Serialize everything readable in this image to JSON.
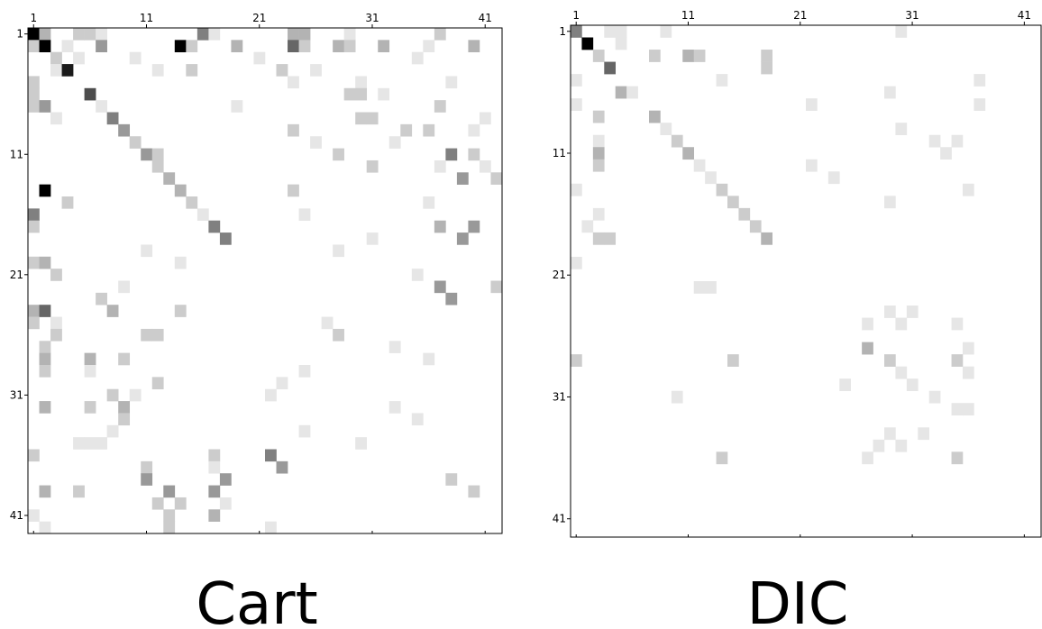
{
  "chart_data": [
    {
      "type": "heatmap",
      "title": "Cart",
      "color": "#000000",
      "x": [
        1,
        2,
        5,
        6,
        7,
        16,
        17,
        24,
        25,
        29,
        37,
        1,
        2,
        4,
        7,
        14,
        15,
        19,
        24,
        25,
        28,
        29,
        32,
        36,
        40,
        3,
        5,
        10,
        21,
        35,
        3,
        4,
        12,
        15,
        23,
        26,
        1,
        24,
        30,
        38,
        1,
        6,
        29,
        30,
        32,
        1,
        2,
        7,
        19,
        37,
        3,
        8,
        30,
        31,
        41,
        9,
        24,
        34,
        36,
        40,
        10,
        26,
        33,
        11,
        12,
        28,
        38,
        40,
        12,
        31,
        37,
        41,
        13,
        39,
        42,
        2,
        14,
        24,
        4,
        15,
        36,
        1,
        16,
        25,
        1,
        17,
        37,
        40,
        18,
        31,
        39,
        11,
        28,
        1,
        2,
        14,
        3,
        35,
        9,
        37,
        42,
        7,
        38,
        1,
        2,
        8,
        14,
        1,
        3,
        27,
        3,
        11,
        12,
        28,
        2,
        33,
        2,
        6,
        9,
        36,
        2,
        6,
        25,
        12,
        23,
        8,
        10,
        22,
        2,
        6,
        9,
        33,
        9,
        35,
        8,
        25,
        5,
        6,
        7,
        30,
        1,
        17,
        22,
        11,
        17,
        23,
        11,
        18,
        38,
        2,
        5,
        13,
        17,
        40,
        12,
        14,
        18,
        1,
        13,
        17,
        2,
        13,
        22
      ],
      "y": [
        1,
        1,
        1,
        1,
        1,
        1,
        1,
        1,
        1,
        1,
        1,
        2,
        2,
        2,
        2,
        2,
        2,
        2,
        2,
        2,
        2,
        2,
        2,
        2,
        2,
        3,
        3,
        3,
        3,
        3,
        4,
        4,
        4,
        4,
        4,
        4,
        5,
        5,
        5,
        5,
        6,
        6,
        6,
        6,
        6,
        7,
        7,
        7,
        7,
        7,
        8,
        8,
        8,
        8,
        8,
        9,
        9,
        9,
        9,
        9,
        10,
        10,
        10,
        11,
        11,
        11,
        11,
        11,
        12,
        12,
        12,
        12,
        13,
        13,
        13,
        14,
        14,
        14,
        15,
        15,
        15,
        16,
        16,
        16,
        17,
        17,
        17,
        17,
        18,
        18,
        18,
        19,
        19,
        20,
        20,
        20,
        21,
        21,
        22,
        22,
        22,
        23,
        23,
        24,
        24,
        24,
        24,
        25,
        25,
        25,
        26,
        26,
        26,
        26,
        27,
        27,
        28,
        28,
        28,
        28,
        29,
        29,
        29,
        30,
        30,
        31,
        31,
        31,
        32,
        32,
        32,
        32,
        33,
        33,
        34,
        34,
        35,
        35,
        35,
        35,
        36,
        36,
        36,
        37,
        37,
        37,
        38,
        38,
        38,
        39,
        39,
        39,
        39,
        39,
        40,
        40,
        40,
        41,
        41,
        41,
        42,
        42,
        42
      ],
      "values": [
        1,
        0.3,
        0.2,
        0.2,
        0.1,
        0.5,
        0.1,
        0.3,
        0.3,
        0.1,
        0.2,
        0.2,
        1,
        0.1,
        0.4,
        1,
        0.2,
        0.3,
        0.6,
        0.2,
        0.3,
        0.2,
        0.3,
        0.1,
        0.3,
        0.2,
        0.1,
        0.1,
        0.1,
        0.1,
        0.1,
        0.9,
        0.1,
        0.2,
        0.2,
        0.1,
        0.2,
        0.1,
        0.1,
        0.1,
        0.2,
        0.7,
        0.2,
        0.2,
        0.1,
        0.2,
        0.4,
        0.1,
        0.1,
        0.2,
        0.1,
        0.5,
        0.2,
        0.2,
        0.1,
        0.4,
        0.2,
        0.2,
        0.2,
        0.1,
        0.2,
        0.1,
        0.1,
        0.4,
        0.2,
        0.2,
        0.5,
        0.2,
        0.2,
        0.2,
        0.1,
        0.1,
        0.3,
        0.4,
        0.2,
        1,
        0.3,
        0.2,
        0.2,
        0.2,
        0.1,
        0.5,
        0.1,
        0.1,
        0.2,
        0.5,
        0.3,
        0.4,
        0.5,
        0.1,
        0.4,
        0.1,
        0.1,
        0.2,
        0.3,
        0.1,
        0.2,
        0.1,
        0.1,
        0.4,
        0.2,
        0.2,
        0.4,
        0.3,
        0.6,
        0.3,
        0.2,
        0.2,
        0.1,
        0.1,
        0.2,
        0.2,
        0.2,
        0.2,
        0.2,
        0.1,
        0.3,
        0.3,
        0.2,
        0.1,
        0.2,
        0.1,
        0.1,
        0.2,
        0.1,
        0.2,
        0.1,
        0.1,
        0.3,
        0.2,
        0.3,
        0.1,
        0.2,
        0.1,
        0.1,
        0.1,
        0.1,
        0.1,
        0.1,
        0.1,
        0.2,
        0.2,
        0.5,
        0.2,
        0.1,
        0.4,
        0.4,
        0.4,
        0.2,
        0.3,
        0.2,
        0.4,
        0.4,
        0.2,
        0.2,
        0.2,
        0.1,
        0.1,
        0.2,
        0.3,
        0.1,
        0.2,
        0.1
      ],
      "xlim": [
        0.5,
        42.5
      ],
      "ylim": [
        0.5,
        42.5
      ],
      "xticks": [
        1,
        11,
        21,
        31,
        41
      ],
      "yticks": [
        1,
        11,
        21,
        31,
        41
      ]
    },
    {
      "type": "heatmap",
      "title": "DIC",
      "color": "#000000",
      "x": [
        1,
        4,
        5,
        9,
        30,
        2,
        5,
        3,
        8,
        11,
        12,
        18,
        4,
        18,
        1,
        14,
        37,
        5,
        6,
        29,
        1,
        22,
        37,
        3,
        8,
        9,
        30,
        3,
        10,
        33,
        35,
        3,
        11,
        34,
        3,
        12,
        22,
        13,
        24,
        1,
        14,
        36,
        15,
        29,
        3,
        16,
        2,
        17,
        3,
        4,
        18,
        1,
        12,
        13,
        29,
        31,
        27,
        30,
        35,
        27,
        36,
        1,
        15,
        29,
        35,
        30,
        36,
        25,
        31,
        10,
        33,
        35,
        36,
        29,
        32,
        28,
        30,
        14,
        27,
        35
      ],
      "y": [
        1,
        1,
        1,
        1,
        1,
        2,
        2,
        3,
        3,
        3,
        3,
        3,
        4,
        4,
        5,
        5,
        5,
        6,
        6,
        6,
        7,
        7,
        7,
        8,
        8,
        9,
        9,
        10,
        10,
        10,
        10,
        11,
        11,
        11,
        12,
        12,
        12,
        13,
        13,
        14,
        14,
        14,
        15,
        15,
        16,
        16,
        17,
        17,
        18,
        18,
        18,
        20,
        22,
        22,
        24,
        24,
        25,
        25,
        25,
        27,
        27,
        28,
        28,
        28,
        28,
        29,
        29,
        30,
        30,
        31,
        31,
        32,
        32,
        34,
        34,
        35,
        35,
        36,
        36,
        36
      ],
      "values": [
        0.5,
        0.1,
        0.1,
        0.1,
        0.1,
        1,
        0.1,
        0.2,
        0.2,
        0.3,
        0.2,
        0.2,
        0.6,
        0.2,
        0.1,
        0.1,
        0.1,
        0.3,
        0.1,
        0.1,
        0.1,
        0.1,
        0.1,
        0.2,
        0.3,
        0.1,
        0.1,
        0.1,
        0.2,
        0.1,
        0.1,
        0.3,
        0.3,
        0.1,
        0.2,
        0.1,
        0.1,
        0.1,
        0.1,
        0.1,
        0.2,
        0.1,
        0.2,
        0.1,
        0.1,
        0.2,
        0.1,
        0.2,
        0.2,
        0.2,
        0.3,
        0.1,
        0.1,
        0.1,
        0.1,
        0.1,
        0.1,
        0.1,
        0.1,
        0.3,
        0.1,
        0.2,
        0.2,
        0.2,
        0.2,
        0.1,
        0.1,
        0.1,
        0.1,
        0.1,
        0.1,
        0.1,
        0.1,
        0.1,
        0.1,
        0.1,
        0.1,
        0.2,
        0.1,
        0.2
      ],
      "xlim": [
        0.5,
        42.5
      ],
      "ylim": [
        0.5,
        42.5
      ],
      "xticks": [
        1,
        11,
        21,
        31,
        41
      ],
      "yticks": [
        1,
        11,
        21,
        31,
        41
      ]
    }
  ]
}
